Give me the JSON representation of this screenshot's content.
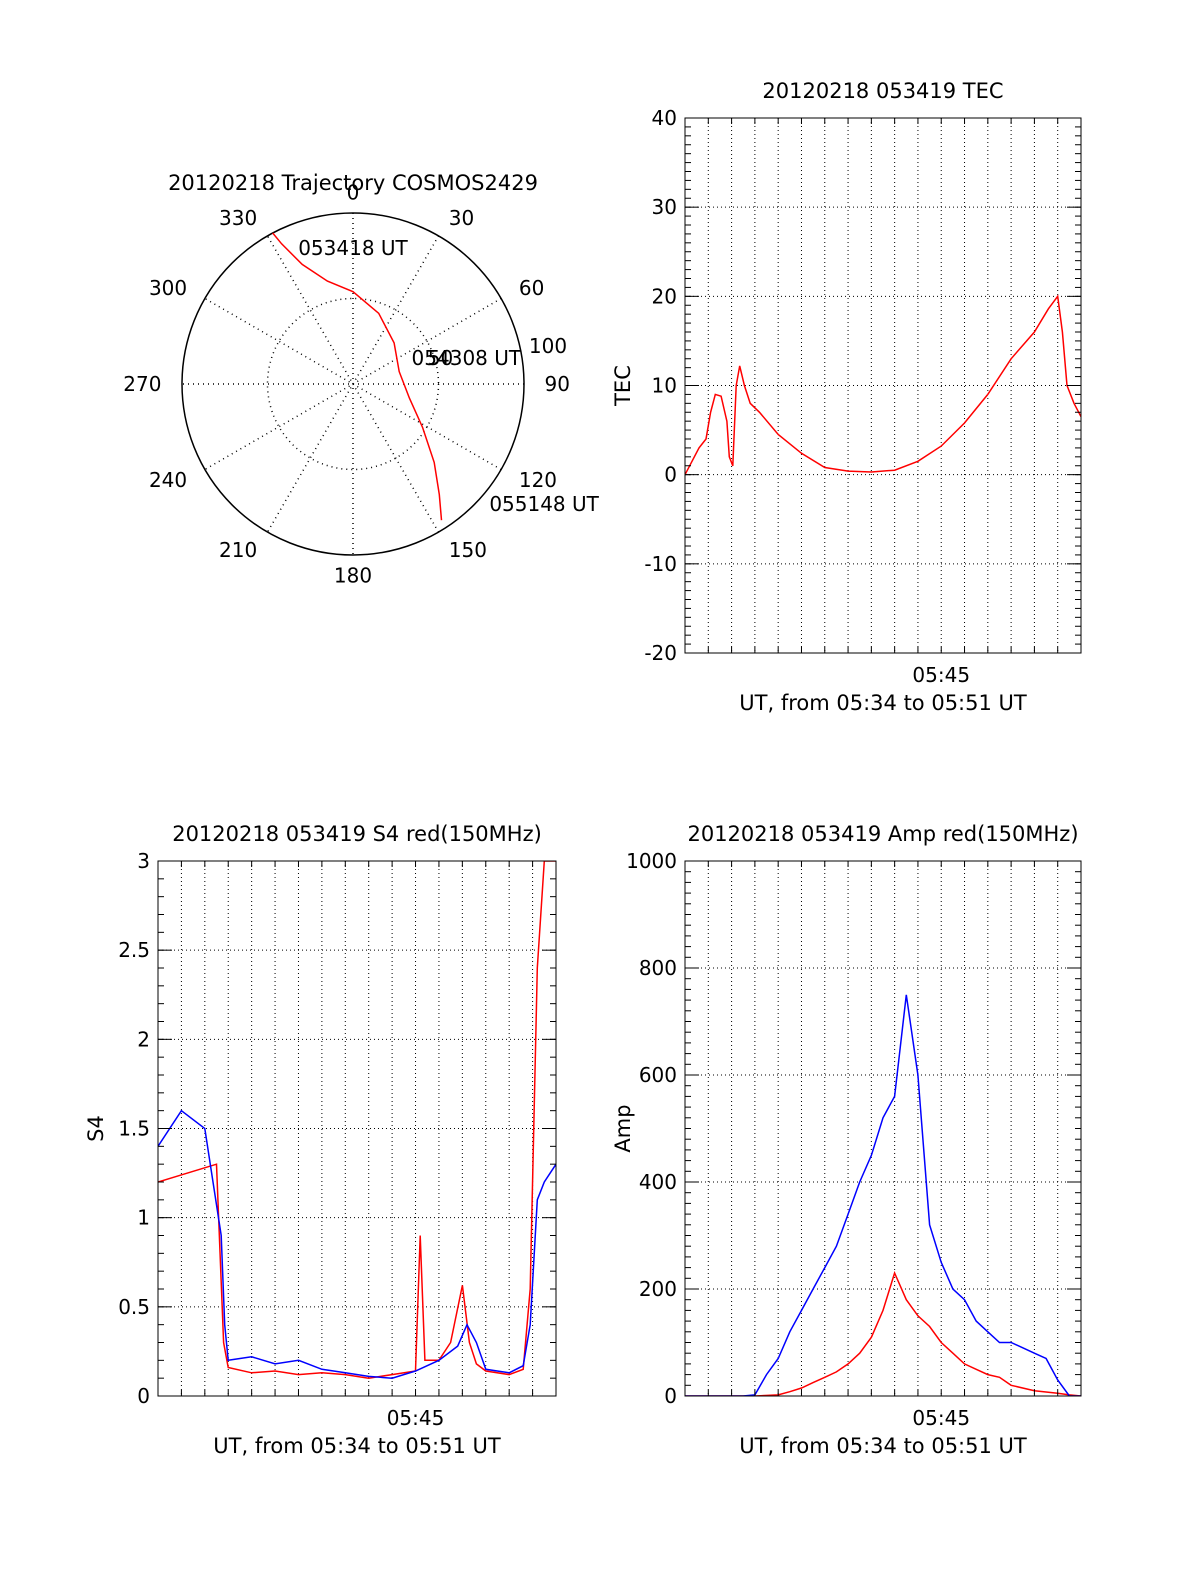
{
  "colors": {
    "primary": "#ff0000",
    "secondary": "#0000ff",
    "axis": "#000000",
    "grid": "#000000",
    "background": "#ffffff"
  },
  "chart_data": [
    {
      "type": "polar",
      "title": "20120218 Trajectory COSMOS2429",
      "angle_labels": [
        "0",
        "30",
        "60",
        "90",
        "120",
        "150",
        "180",
        "210",
        "240",
        "270",
        "300",
        "330"
      ],
      "radius_labels": [
        "50",
        "100"
      ],
      "series": [
        {
          "color": "#ff0000",
          "points": [
            {
              "az": 332,
              "r": 100
            },
            {
              "az": 333,
              "r": 92
            },
            {
              "az": 337,
              "r": 76
            },
            {
              "az": 346,
              "r": 62
            },
            {
              "az": 0,
              "r": 54
            },
            {
              "az": 20,
              "r": 44
            },
            {
              "az": 45,
              "r": 34
            },
            {
              "az": 75,
              "r": 28
            },
            {
              "az": 104,
              "r": 34
            },
            {
              "az": 122,
              "r": 48
            },
            {
              "az": 134,
              "r": 66
            },
            {
              "az": 142,
              "r": 82
            },
            {
              "az": 147,
              "r": 95
            }
          ]
        }
      ],
      "annotations": [
        {
          "text": "053418 UT",
          "az": 337,
          "r": 82
        },
        {
          "text": "054308 UT",
          "az": 72,
          "r": 36
        },
        {
          "text": "055148 UT",
          "az": 133,
          "r": 109
        }
      ]
    },
    {
      "type": "line",
      "title": "20120218 053419 TEC",
      "xlabel": "UT, from 05:34 to 05:51 UT",
      "ylabel": "TEC",
      "xlim": [
        0,
        17
      ],
      "ylim": [
        -20,
        40
      ],
      "yticks": [
        -20,
        -10,
        0,
        10,
        20,
        30,
        40
      ],
      "xticks": [
        {
          "x": 11,
          "label": "05:45"
        }
      ],
      "grid": true,
      "series": [
        {
          "color": "#ff0000",
          "x": [
            0,
            0.3,
            0.6,
            0.9,
            1.1,
            1.3,
            1.55,
            1.8,
            1.9,
            2.05,
            2.2,
            2.35,
            2.55,
            2.8,
            3.2,
            4,
            5,
            6,
            7,
            8,
            9,
            10,
            11,
            12,
            13,
            14,
            15,
            15.6,
            16.0,
            16.2,
            16.4,
            16.7,
            17
          ],
          "values": [
            0,
            1.5,
            3,
            4,
            7,
            9,
            8.8,
            6,
            2,
            1,
            10,
            12.2,
            10,
            8,
            7,
            4.5,
            2.4,
            0.8,
            0.4,
            0.3,
            0.5,
            1.5,
            3.2,
            5.8,
            9,
            13,
            16,
            18.6,
            20,
            16,
            10,
            8,
            6.5
          ]
        }
      ]
    },
    {
      "type": "line",
      "title": "20120218 053419 S4 red(150MHz)",
      "xlabel": "UT, from 05:34 to 05:51 UT",
      "ylabel": "S4",
      "xlim": [
        0,
        17
      ],
      "ylim": [
        0,
        3
      ],
      "yticks": [
        0,
        0.5,
        1,
        1.5,
        2,
        2.5,
        3
      ],
      "xticks": [
        {
          "x": 11,
          "label": "05:45"
        }
      ],
      "grid": true,
      "series": [
        {
          "color": "#ff0000",
          "x": [
            0,
            2.5,
            2.8,
            3,
            4,
            5,
            6,
            7,
            8,
            9,
            10,
            11,
            11.2,
            11.4,
            12,
            12.5,
            13,
            13.3,
            13.6,
            14,
            15,
            15.6,
            15.9,
            16.2,
            16.5,
            17
          ],
          "values": [
            1.2,
            1.3,
            0.3,
            0.16,
            0.13,
            0.14,
            0.12,
            0.13,
            0.12,
            0.1,
            0.12,
            0.14,
            0.9,
            0.2,
            0.2,
            0.3,
            0.62,
            0.3,
            0.18,
            0.14,
            0.12,
            0.15,
            0.6,
            2.4,
            3,
            3
          ]
        },
        {
          "color": "#0000ff",
          "x": [
            0,
            1,
            2,
            2.7,
            2.85,
            3,
            4,
            5,
            6,
            7,
            8,
            9,
            10,
            11,
            12,
            12.8,
            13.2,
            13.6,
            14,
            15,
            15.6,
            15.9,
            16.2,
            16.5,
            17
          ],
          "values": [
            1.4,
            1.6,
            1.5,
            0.9,
            0.4,
            0.2,
            0.22,
            0.18,
            0.2,
            0.15,
            0.13,
            0.11,
            0.1,
            0.14,
            0.2,
            0.28,
            0.4,
            0.3,
            0.15,
            0.13,
            0.17,
            0.4,
            1.1,
            1.2,
            1.3
          ]
        }
      ]
    },
    {
      "type": "line",
      "title": "20120218 053419 Amp red(150MHz)",
      "xlabel": "UT, from 05:34 to 05:51 UT",
      "ylabel": "Amp",
      "xlim": [
        0,
        17
      ],
      "ylim": [
        0,
        1000
      ],
      "yticks": [
        0,
        200,
        400,
        600,
        800,
        1000
      ],
      "xticks": [
        {
          "x": 11,
          "label": "05:45"
        }
      ],
      "grid": true,
      "series": [
        {
          "color": "#ff0000",
          "x": [
            0,
            2,
            3,
            4,
            4.5,
            5,
            5.5,
            6,
            6.5,
            7,
            7.5,
            8,
            8.5,
            9,
            9.5,
            10,
            10.5,
            11,
            11.5,
            12,
            12.5,
            13,
            13.5,
            14,
            15,
            16,
            16.5,
            17
          ],
          "values": [
            0,
            0,
            0,
            2,
            8,
            15,
            25,
            35,
            45,
            60,
            80,
            110,
            160,
            230,
            180,
            150,
            130,
            100,
            80,
            60,
            50,
            40,
            35,
            20,
            10,
            5,
            2,
            0
          ]
        },
        {
          "color": "#0000ff",
          "x": [
            0,
            2.5,
            3,
            3.5,
            4,
            4.5,
            5,
            5.5,
            6,
            6.5,
            7,
            7.5,
            8,
            8.5,
            9,
            9.5,
            10,
            10.5,
            11,
            11.5,
            12,
            12.5,
            13,
            13.5,
            14,
            14.5,
            15,
            15.5,
            16,
            16.5,
            17
          ],
          "values": [
            0,
            0,
            2,
            40,
            70,
            120,
            160,
            200,
            240,
            280,
            340,
            400,
            450,
            520,
            560,
            750,
            600,
            320,
            250,
            200,
            180,
            140,
            120,
            100,
            100,
            90,
            80,
            70,
            30,
            0,
            0
          ]
        }
      ]
    }
  ]
}
